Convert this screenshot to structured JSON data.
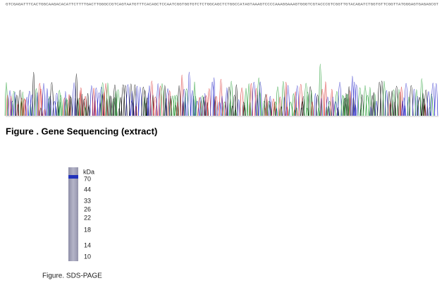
{
  "sequence": {
    "bases": "GTCGAGATTTCACTGGCAAGACACATTCTTTTGACTTGGGCCGTCAGTAATGTTTCACAGCTCCAATCGGTGGTGTCTCTGGCAGCTCTGGCCATAGTAAAGTCCCCAAAGGAAAGTGGGTCGTACCCGTCGGTTGTACAGATCTGGTGTTCGGTTATGGGAGTGAGAGCGT",
    "caption": "Figure . Gene Sequencing (extract)"
  },
  "gel": {
    "unit": "kDa",
    "markers": [
      70,
      44,
      33,
      26,
      22,
      18,
      14,
      10
    ],
    "caption": "Figure. SDS-PAGE"
  }
}
